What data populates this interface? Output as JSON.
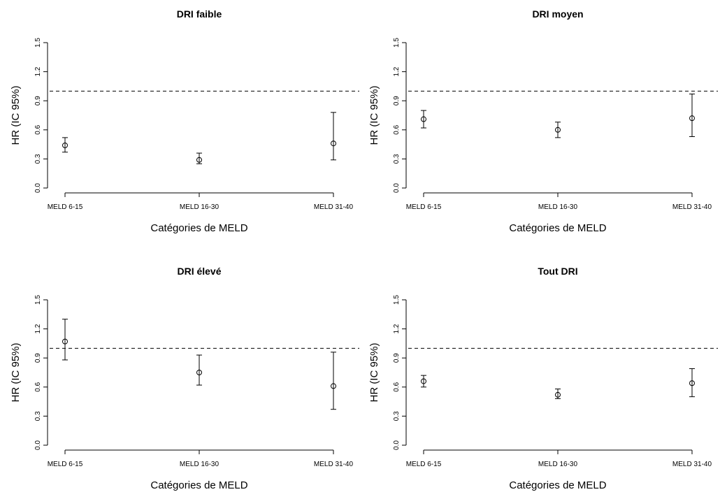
{
  "chart_data": [
    {
      "type": "scatter",
      "title": "DRI faible",
      "xlabel": "Catégories de MELD",
      "ylabel": "HR (IC 95%)",
      "categories": [
        "MELD 6-15",
        "MELD 16-30",
        "MELD 31-40"
      ],
      "yticks": [
        "0.0",
        "0.3",
        "0.6",
        "0.9",
        "1.2",
        "1.5"
      ],
      "ylim": [
        0,
        1.5
      ],
      "reference_line": 1.0,
      "values": [
        0.44,
        0.29,
        0.46
      ],
      "lower": [
        0.37,
        0.25,
        0.29
      ],
      "upper": [
        0.52,
        0.36,
        0.78
      ],
      "grid": false
    },
    {
      "type": "scatter",
      "title": "DRI moyen",
      "xlabel": "Catégories de MELD",
      "ylabel": "HR (IC 95%)",
      "categories": [
        "MELD 6-15",
        "MELD 16-30",
        "MELD 31-40"
      ],
      "yticks": [
        "0.0",
        "0.3",
        "0.6",
        "0.9",
        "1.2",
        "1.5"
      ],
      "ylim": [
        0,
        1.5
      ],
      "reference_line": 1.0,
      "values": [
        0.71,
        0.6,
        0.72
      ],
      "lower": [
        0.62,
        0.52,
        0.53
      ],
      "upper": [
        0.8,
        0.68,
        0.97
      ],
      "grid": false
    },
    {
      "type": "scatter",
      "title": "DRI élevé",
      "xlabel": "Catégories de MELD",
      "ylabel": "HR (IC 95%)",
      "categories": [
        "MELD 6-15",
        "MELD 16-30",
        "MELD 31-40"
      ],
      "yticks": [
        "0.0",
        "0.3",
        "0.6",
        "0.9",
        "1.2",
        "1.5"
      ],
      "ylim": [
        0,
        1.5
      ],
      "reference_line": 1.0,
      "values": [
        1.07,
        0.75,
        0.61
      ],
      "lower": [
        0.88,
        0.62,
        0.37
      ],
      "upper": [
        1.3,
        0.93,
        0.96
      ],
      "grid": false
    },
    {
      "type": "scatter",
      "title": "Tout DRI",
      "xlabel": "Catégories de MELD",
      "ylabel": "HR (IC 95%)",
      "categories": [
        "MELD 6-15",
        "MELD 16-30",
        "MELD 31-40"
      ],
      "yticks": [
        "0.0",
        "0.3",
        "0.6",
        "0.9",
        "1.2",
        "1.5"
      ],
      "ylim": [
        0,
        1.5
      ],
      "reference_line": 1.0,
      "values": [
        0.66,
        0.52,
        0.64
      ],
      "lower": [
        0.6,
        0.48,
        0.5
      ],
      "upper": [
        0.72,
        0.58,
        0.79
      ],
      "grid": false
    }
  ]
}
